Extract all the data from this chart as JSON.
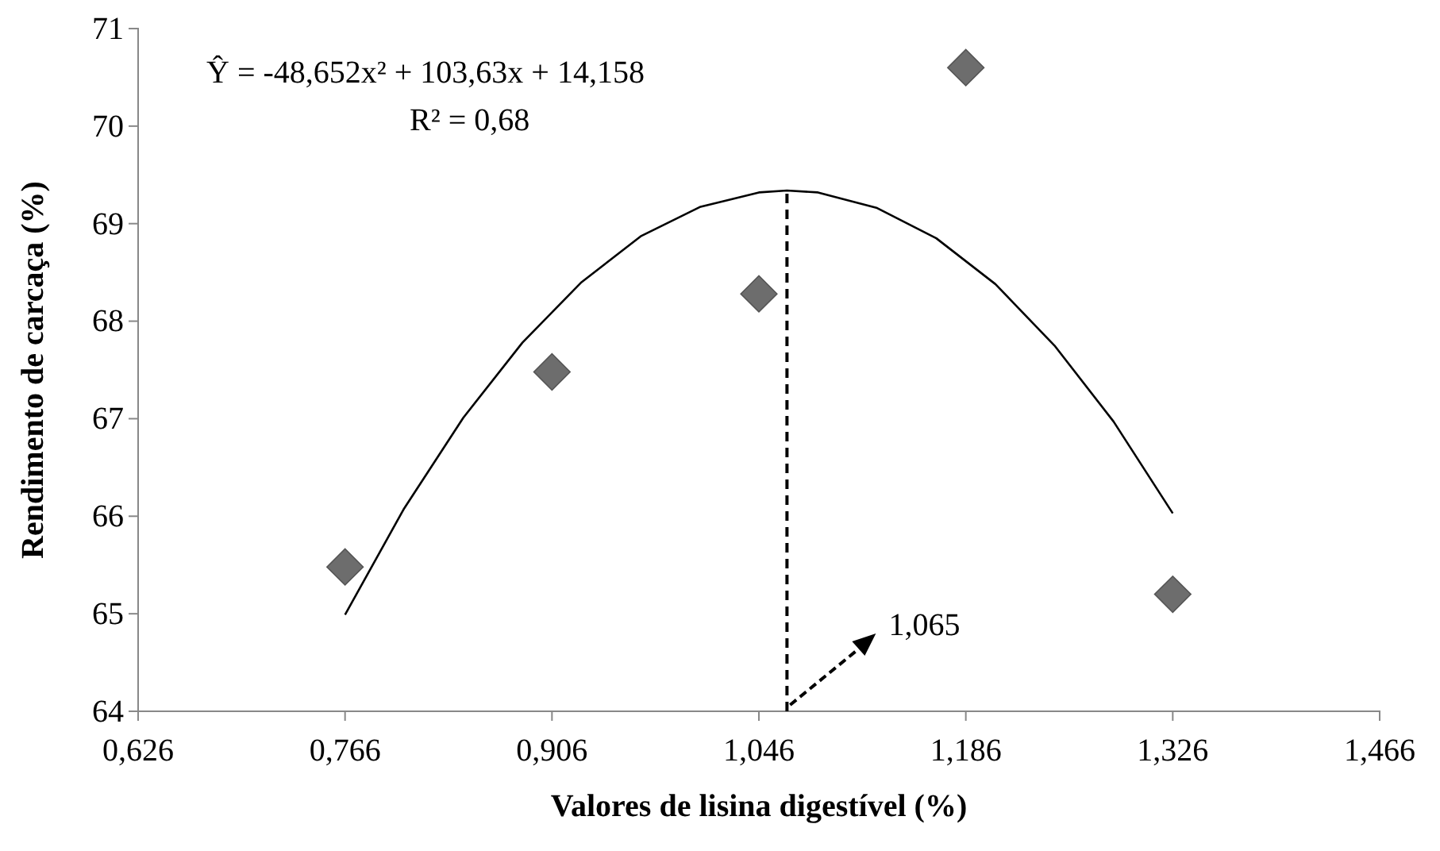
{
  "chart_data": {
    "type": "scatter",
    "xlabel": "Valores de lisina digestível (%)",
    "ylabel": "Rendimento de carcaça (%)",
    "xlim": [
      0.626,
      1.466
    ],
    "xticks": [
      {
        "value": 0.626,
        "label": "0,626"
      },
      {
        "value": 0.766,
        "label": "0,766"
      },
      {
        "value": 0.906,
        "label": "0,906"
      },
      {
        "value": 1.046,
        "label": "1,046"
      },
      {
        "value": 1.186,
        "label": "1,186"
      },
      {
        "value": 1.326,
        "label": "1,326"
      },
      {
        "value": 1.466,
        "label": "1,466"
      }
    ],
    "ylim": [
      64,
      71
    ],
    "yticks": [
      64,
      65,
      66,
      67,
      68,
      69,
      70,
      71
    ],
    "grid": false,
    "series": [
      {
        "marker": "diamond",
        "color": "#6d6d6d",
        "x": [
          0.766,
          0.906,
          1.046,
          1.186,
          1.326
        ],
        "values": [
          65.48,
          67.48,
          68.28,
          70.6,
          65.2
        ]
      },
      {
        "type": "line",
        "marker": "none",
        "line_style": "solid",
        "color": "#000000",
        "x": [
          0.766,
          0.806,
          0.846,
          0.886,
          0.926,
          0.966,
          1.006,
          1.046,
          1.065,
          1.086,
          1.126,
          1.166,
          1.206,
          1.246,
          1.286,
          1.326
        ],
        "values": [
          64.99,
          66.08,
          67.01,
          67.78,
          68.4,
          68.87,
          69.17,
          69.32,
          69.34,
          69.32,
          69.16,
          68.85,
          68.38,
          67.75,
          66.97,
          66.03
        ]
      },
      {
        "type": "line",
        "marker": "none",
        "line_style": "dashed",
        "color": "#000000",
        "x": [
          1.065,
          1.065
        ],
        "values": [
          64,
          69.34
        ]
      }
    ],
    "annotations": [
      "Ŷ = -48,652x² + 103,63x + 14,158",
      "R² = 0,68",
      {
        "text": "1,065",
        "x": 1.065,
        "y": 64
      }
    ]
  }
}
